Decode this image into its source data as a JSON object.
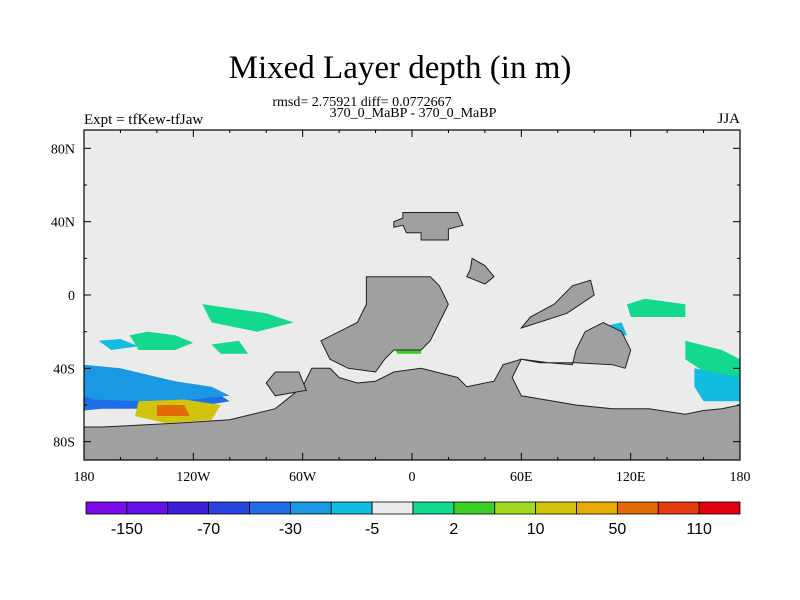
{
  "figure": {
    "title": "Mixed Layer depth (in m)",
    "stats_line": "rmsd= 2.75921 diff= 0.0772667",
    "subtitle": "370_0_MaBP - 370_0_MaBP",
    "left_label": "Expt = tfKew-tfJaw",
    "right_label": "JJA"
  },
  "chart_data": {
    "type": "heatmap",
    "title": "Mixed Layer depth (in m)",
    "subtitle": "370_0_MaBP - 370_0_MaBP",
    "projection": "cylindrical equidistant",
    "xlim": [
      -180,
      180
    ],
    "ylim": [
      -90,
      90
    ],
    "x_ticks": [
      {
        "value": -180,
        "label": "180"
      },
      {
        "value": -120,
        "label": "120W"
      },
      {
        "value": -60,
        "label": "60W"
      },
      {
        "value": 0,
        "label": "0"
      },
      {
        "value": 60,
        "label": "60E"
      },
      {
        "value": 120,
        "label": "120E"
      },
      {
        "value": 180,
        "label": "180"
      }
    ],
    "y_ticks": [
      {
        "value": 80,
        "label": "80N"
      },
      {
        "value": 40,
        "label": "40N"
      },
      {
        "value": 0,
        "label": "0"
      },
      {
        "value": -40,
        "label": "40S"
      },
      {
        "value": -80,
        "label": "80S"
      }
    ],
    "colorbar": {
      "colors": [
        "#7b0ce8",
        "#6410e6",
        "#3d1fd8",
        "#2a44e0",
        "#1d6ee8",
        "#1b98e4",
        "#12bbe0",
        "#ebebeb",
        "#14d88c",
        "#3acd23",
        "#a0d823",
        "#d2c30c",
        "#e7ab08",
        "#e36a06",
        "#e43a0c",
        "#e1000e"
      ],
      "labels": [
        "-150",
        "-70",
        "-30",
        "-5",
        "2",
        "10",
        "50",
        "110"
      ]
    },
    "colors": {
      "missing": "#ebebeb",
      "land": "#a0a0a0"
    },
    "land": [
      {
        "name": "north-land-a",
        "points": [
          [
            -5,
            45
          ],
          [
            25,
            45
          ],
          [
            28,
            38
          ],
          [
            20,
            36
          ],
          [
            20,
            30
          ],
          [
            5,
            30
          ],
          [
            5,
            34
          ],
          [
            -3,
            34
          ],
          [
            -5,
            38
          ],
          [
            -10,
            37
          ],
          [
            -10,
            40
          ],
          [
            -5,
            42
          ]
        ]
      },
      {
        "name": "north-land-b",
        "points": [
          [
            33,
            20
          ],
          [
            40,
            16
          ],
          [
            45,
            10
          ],
          [
            40,
            6
          ],
          [
            35,
            8
          ],
          [
            30,
            10
          ],
          [
            32,
            14
          ]
        ]
      },
      {
        "name": "central-land",
        "points": [
          [
            -25,
            10
          ],
          [
            10,
            10
          ],
          [
            15,
            5
          ],
          [
            20,
            -5
          ],
          [
            15,
            -15
          ],
          [
            10,
            -25
          ],
          [
            5,
            -30
          ],
          [
            -10,
            -30
          ],
          [
            -15,
            -35
          ],
          [
            -20,
            -42
          ],
          [
            -35,
            -40
          ],
          [
            -45,
            -35
          ],
          [
            -50,
            -25
          ],
          [
            -40,
            -20
          ],
          [
            -30,
            -15
          ],
          [
            -25,
            -5
          ]
        ]
      },
      {
        "name": "south-land",
        "points": [
          [
            -55,
            -40
          ],
          [
            -45,
            -40
          ],
          [
            -40,
            -45
          ],
          [
            -30,
            -48
          ],
          [
            -20,
            -47
          ],
          [
            -10,
            -42
          ],
          [
            5,
            -40
          ],
          [
            25,
            -45
          ],
          [
            30,
            -50
          ],
          [
            45,
            -47
          ],
          [
            50,
            -38
          ],
          [
            60,
            -35
          ],
          [
            70,
            -37
          ],
          [
            90,
            -37
          ],
          [
            110,
            -38
          ],
          [
            117,
            -40
          ],
          [
            120,
            -30
          ],
          [
            115,
            -20
          ],
          [
            105,
            -15
          ],
          [
            95,
            -20
          ],
          [
            90,
            -30
          ],
          [
            88,
            -38
          ],
          [
            75,
            -37
          ],
          [
            60,
            -35
          ],
          [
            55,
            -45
          ],
          [
            60,
            -55
          ],
          [
            90,
            -60
          ],
          [
            110,
            -62
          ],
          [
            130,
            -62
          ],
          [
            150,
            -65
          ],
          [
            160,
            -63
          ],
          [
            170,
            -62
          ],
          [
            180,
            -60
          ],
          [
            180,
            -90
          ],
          [
            -180,
            -90
          ],
          [
            -180,
            -72
          ],
          [
            -170,
            -72
          ],
          [
            -130,
            -70
          ],
          [
            -100,
            -68
          ],
          [
            -75,
            -62
          ],
          [
            -60,
            -50
          ]
        ]
      },
      {
        "name": "south-island",
        "points": [
          [
            -75,
            -42
          ],
          [
            -62,
            -42
          ],
          [
            -58,
            -52
          ],
          [
            -75,
            -55
          ],
          [
            -80,
            -48
          ]
        ]
      },
      {
        "name": "east-peninsula",
        "points": [
          [
            60,
            -18
          ],
          [
            85,
            -10
          ],
          [
            100,
            0
          ],
          [
            98,
            8
          ],
          [
            88,
            5
          ],
          [
            78,
            -5
          ],
          [
            65,
            -12
          ]
        ]
      }
    ],
    "anomaly_regions": [
      {
        "name": "sw-blue-a",
        "color": "#1d6ee8",
        "points": [
          [
            -180,
            -43
          ],
          [
            -165,
            -43
          ],
          [
            -140,
            -50
          ],
          [
            -120,
            -52
          ],
          [
            -105,
            -55
          ],
          [
            -100,
            -58
          ],
          [
            -125,
            -62
          ],
          [
            -150,
            -62
          ],
          [
            -170,
            -62
          ],
          [
            -180,
            -63
          ]
        ]
      },
      {
        "name": "sw-blue-b",
        "color": "#1b98e4",
        "points": [
          [
            -180,
            -38
          ],
          [
            -160,
            -40
          ],
          [
            -130,
            -47
          ],
          [
            -110,
            -50
          ],
          [
            -100,
            -55
          ],
          [
            -120,
            -57
          ],
          [
            -150,
            -58
          ],
          [
            -175,
            -57
          ],
          [
            -180,
            -55
          ]
        ]
      },
      {
        "name": "sw-cyan",
        "color": "#12bbe0",
        "points": [
          [
            -172,
            -25
          ],
          [
            -160,
            -24
          ],
          [
            -150,
            -28
          ],
          [
            -165,
            -30
          ]
        ]
      },
      {
        "name": "sw-yellow",
        "color": "#d2c30c",
        "points": [
          [
            -150,
            -58
          ],
          [
            -125,
            -57
          ],
          [
            -105,
            -60
          ],
          [
            -110,
            -68
          ],
          [
            -135,
            -70
          ],
          [
            -152,
            -66
          ]
        ]
      },
      {
        "name": "sw-orange",
        "color": "#e36a06",
        "points": [
          [
            -140,
            -60
          ],
          [
            -125,
            -60
          ],
          [
            -122,
            -66
          ],
          [
            -140,
            -66
          ]
        ]
      },
      {
        "name": "sw-green-a",
        "color": "#14d88c",
        "points": [
          [
            -155,
            -22
          ],
          [
            -145,
            -20
          ],
          [
            -130,
            -22
          ],
          [
            -120,
            -26
          ],
          [
            -130,
            -30
          ],
          [
            -150,
            -30
          ]
        ]
      },
      {
        "name": "mid-green-a",
        "color": "#14d88c",
        "points": [
          [
            -115,
            -5
          ],
          [
            -80,
            -10
          ],
          [
            -65,
            -15
          ],
          [
            -85,
            -20
          ],
          [
            -110,
            -15
          ]
        ]
      },
      {
        "name": "mid-green-b",
        "color": "#14d88c",
        "points": [
          [
            -110,
            -27
          ],
          [
            -95,
            -25
          ],
          [
            -90,
            -32
          ],
          [
            -105,
            -32
          ]
        ]
      },
      {
        "name": "ne-green-a",
        "color": "#14d88c",
        "points": [
          [
            118,
            -5
          ],
          [
            128,
            -2
          ],
          [
            150,
            -5
          ],
          [
            150,
            -12
          ],
          [
            135,
            -12
          ],
          [
            120,
            -12
          ]
        ]
      },
      {
        "name": "se-green",
        "color": "#14d88c",
        "points": [
          [
            150,
            -25
          ],
          [
            170,
            -30
          ],
          [
            180,
            -35
          ],
          [
            180,
            -50
          ],
          [
            165,
            -45
          ],
          [
            150,
            -35
          ]
        ]
      },
      {
        "name": "se-cyan",
        "color": "#12bbe0",
        "points": [
          [
            155,
            -40
          ],
          [
            180,
            -45
          ],
          [
            180,
            -58
          ],
          [
            160,
            -58
          ],
          [
            155,
            -50
          ]
        ]
      },
      {
        "name": "east-cyan",
        "color": "#12bbe0",
        "points": [
          [
            100,
            -18
          ],
          [
            115,
            -15
          ],
          [
            118,
            -22
          ],
          [
            100,
            -24
          ]
        ]
      },
      {
        "name": "mid-green-c",
        "color": "#3acd23",
        "points": [
          [
            -10,
            -28
          ],
          [
            5,
            -26
          ],
          [
            5,
            -32
          ],
          [
            -8,
            -32
          ]
        ]
      },
      {
        "name": "east-green-b",
        "color": "#14d88c",
        "points": [
          [
            95,
            -30
          ],
          [
            112,
            -28
          ],
          [
            115,
            -35
          ],
          [
            100,
            -35
          ]
        ]
      }
    ]
  }
}
